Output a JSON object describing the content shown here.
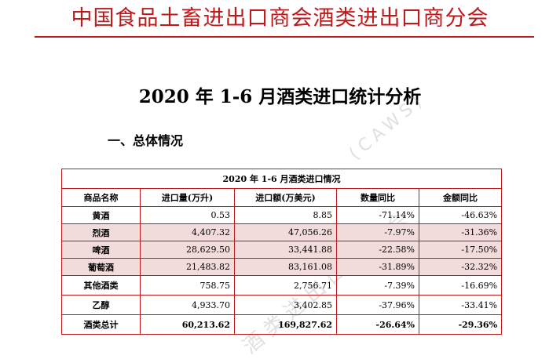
{
  "header": {
    "organization": "中国食品土畜进出口商会酒类进出口商分会"
  },
  "document": {
    "title": "2020 年 1-6 月酒类进口统计分析",
    "section_heading": "一、总体情况",
    "watermark": "(CAWS)",
    "watermark_lower": "酒类进出口商分会"
  },
  "table": {
    "caption": "2020 年 1-6 月酒类进口情况",
    "columns": [
      "商品名称",
      "进口量(万升)",
      "进口额(万美元)",
      "数量同比",
      "金额同比"
    ],
    "rows": [
      {
        "name": "黄酒",
        "volume": "0.53",
        "value": "8.85",
        "volume_yoy": "-71.14%",
        "value_yoy": "-46.63%"
      },
      {
        "name": "烈酒",
        "volume": "4,407.32",
        "value": "47,056.26",
        "volume_yoy": "-7.97%",
        "value_yoy": "-31.36%"
      },
      {
        "name": "啤酒",
        "volume": "28,629.50",
        "value": "33,441.88",
        "volume_yoy": "-22.58%",
        "value_yoy": "-17.50%"
      },
      {
        "name": "葡萄酒",
        "volume": "21,483.82",
        "value": "83,161.08",
        "volume_yoy": "-31.89%",
        "value_yoy": "-32.32%"
      },
      {
        "name": "其他酒类",
        "volume": "758.75",
        "value": "2,756.71",
        "volume_yoy": "-7.39%",
        "value_yoy": "-16.69%"
      },
      {
        "name": "乙醇",
        "volume": "4,933.70",
        "value": "3,402.85",
        "volume_yoy": "-37.96%",
        "value_yoy": "-33.41%"
      },
      {
        "name": "酒类总计",
        "volume": "60,213.62",
        "value": "169,827.62",
        "volume_yoy": "-26.64%",
        "value_yoy": "-29.36%"
      }
    ]
  },
  "colors": {
    "brand_red": "#c0191c",
    "row_shade": "#f2dcdb"
  }
}
